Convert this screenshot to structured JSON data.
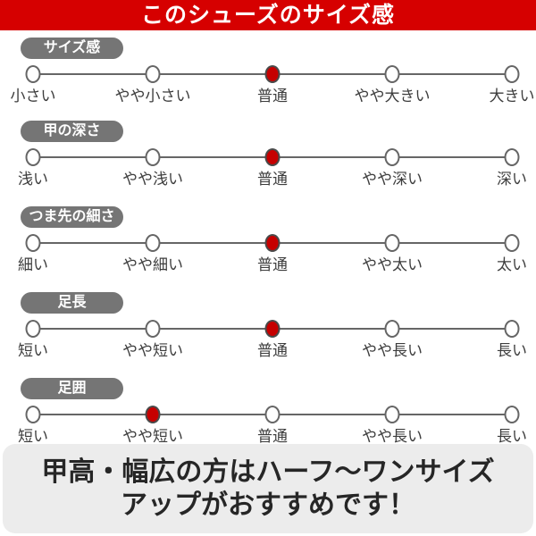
{
  "banner": {
    "title": "このシューズのサイズ感"
  },
  "chart_data": {
    "type": "table",
    "title": "このシューズのサイズ感",
    "scale_points": 5,
    "rows": [
      {
        "label": "サイズ感",
        "options": [
          "小さい",
          "やや小さい",
          "普通",
          "やや大きい",
          "大きい"
        ],
        "selected_index": 2,
        "selected": "普通"
      },
      {
        "label": "甲の深さ",
        "options": [
          "浅い",
          "やや浅い",
          "普通",
          "やや深い",
          "深い"
        ],
        "selected_index": 2,
        "selected": "普通"
      },
      {
        "label": "つま先の細さ",
        "options": [
          "細い",
          "やや細い",
          "普通",
          "やや太い",
          "太い"
        ],
        "selected_index": 2,
        "selected": "普通"
      },
      {
        "label": "足長",
        "options": [
          "短い",
          "やや短い",
          "普通",
          "やや長い",
          "長い"
        ],
        "selected_index": 2,
        "selected": "普通"
      },
      {
        "label": "足囲",
        "options": [
          "短い",
          "やや短い",
          "普通",
          "やや長い",
          "長い"
        ],
        "selected_index": 1,
        "selected": "やや短い"
      }
    ],
    "note": "甲高・幅広の方はハーフ～ワンサイズアップがおすすめです！"
  },
  "footer": {
    "line1": "甲高・幅広の方はハーフ～ワンサイズ",
    "line2": "アップがおすすめです！"
  },
  "colors": {
    "accent_red": "#d60000",
    "dot_red": "#c60000",
    "badge_gray": "#757575",
    "line_gray": "#666666",
    "label_text": "#3d3d3d",
    "footer_bg": "#ececec",
    "footer_text": "#262626"
  }
}
